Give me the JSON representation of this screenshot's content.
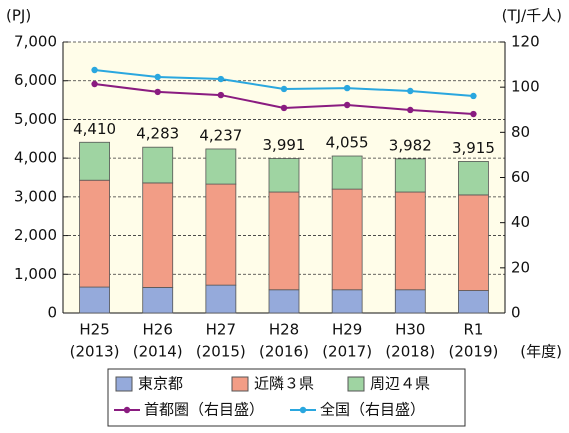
{
  "chart_data": {
    "type": "bar",
    "categories": [
      "H25",
      "H26",
      "H27",
      "H28",
      "H29",
      "H30",
      "R1"
    ],
    "category_sublabels": [
      "(2013)",
      "(2014)",
      "(2015)",
      "(2016)",
      "(2017)",
      "(2018)",
      "(2019)"
    ],
    "y_unit": "(PJ)",
    "y2_unit": "(TJ/千人)",
    "x_unit": "(年度)",
    "series": [
      {
        "name": "東京都",
        "type": "bar",
        "color": "#95aadb",
        "values": [
          670,
          660,
          720,
          600,
          600,
          600,
          580
        ]
      },
      {
        "name": "近隣３県",
        "type": "bar",
        "color": "#f29d86",
        "values": [
          2760,
          2700,
          2610,
          2525,
          2600,
          2525,
          2470
        ]
      },
      {
        "name": "周辺４県",
        "type": "bar",
        "color": "#9fd4a2",
        "values": [
          980,
          923,
          907,
          866,
          855,
          857,
          865
        ]
      },
      {
        "name": "首都圏（右目盛）",
        "type": "line",
        "axis": "y2",
        "color": "#8a1c80",
        "values": [
          101.4,
          97.9,
          96.5,
          90.8,
          92.1,
          89.9,
          88.1
        ]
      },
      {
        "name": "全国（右目盛）",
        "type": "line",
        "axis": "y2",
        "color": "#2aa7df",
        "values": [
          107.6,
          104.5,
          103.6,
          99.2,
          99.6,
          98.3,
          96.1
        ]
      }
    ],
    "totals": [
      4410,
      4283,
      4237,
      3991,
      4055,
      3982,
      3915
    ],
    "total_labels": [
      "4,410",
      "4,283",
      "4,237",
      "3,991",
      "4,055",
      "3,982",
      "3,915"
    ],
    "ylim": [
      0,
      7000
    ],
    "yticks": [
      0,
      {
        "value": 1000,
        "label": "1,000"
      },
      {
        "value": 2000,
        "label": "2,000"
      },
      {
        "value": 3000,
        "label": "3,000"
      },
      {
        "value": 4000,
        "label": "4,000"
      },
      {
        "value": 5000,
        "label": "5,000"
      },
      {
        "value": 6000,
        "label": "6,000"
      },
      {
        "value": 7000,
        "label": "7,000"
      }
    ],
    "y2lim": [
      0,
      120
    ],
    "y2ticks": [
      0,
      20,
      40,
      60,
      80,
      100,
      120
    ],
    "grid": true
  }
}
